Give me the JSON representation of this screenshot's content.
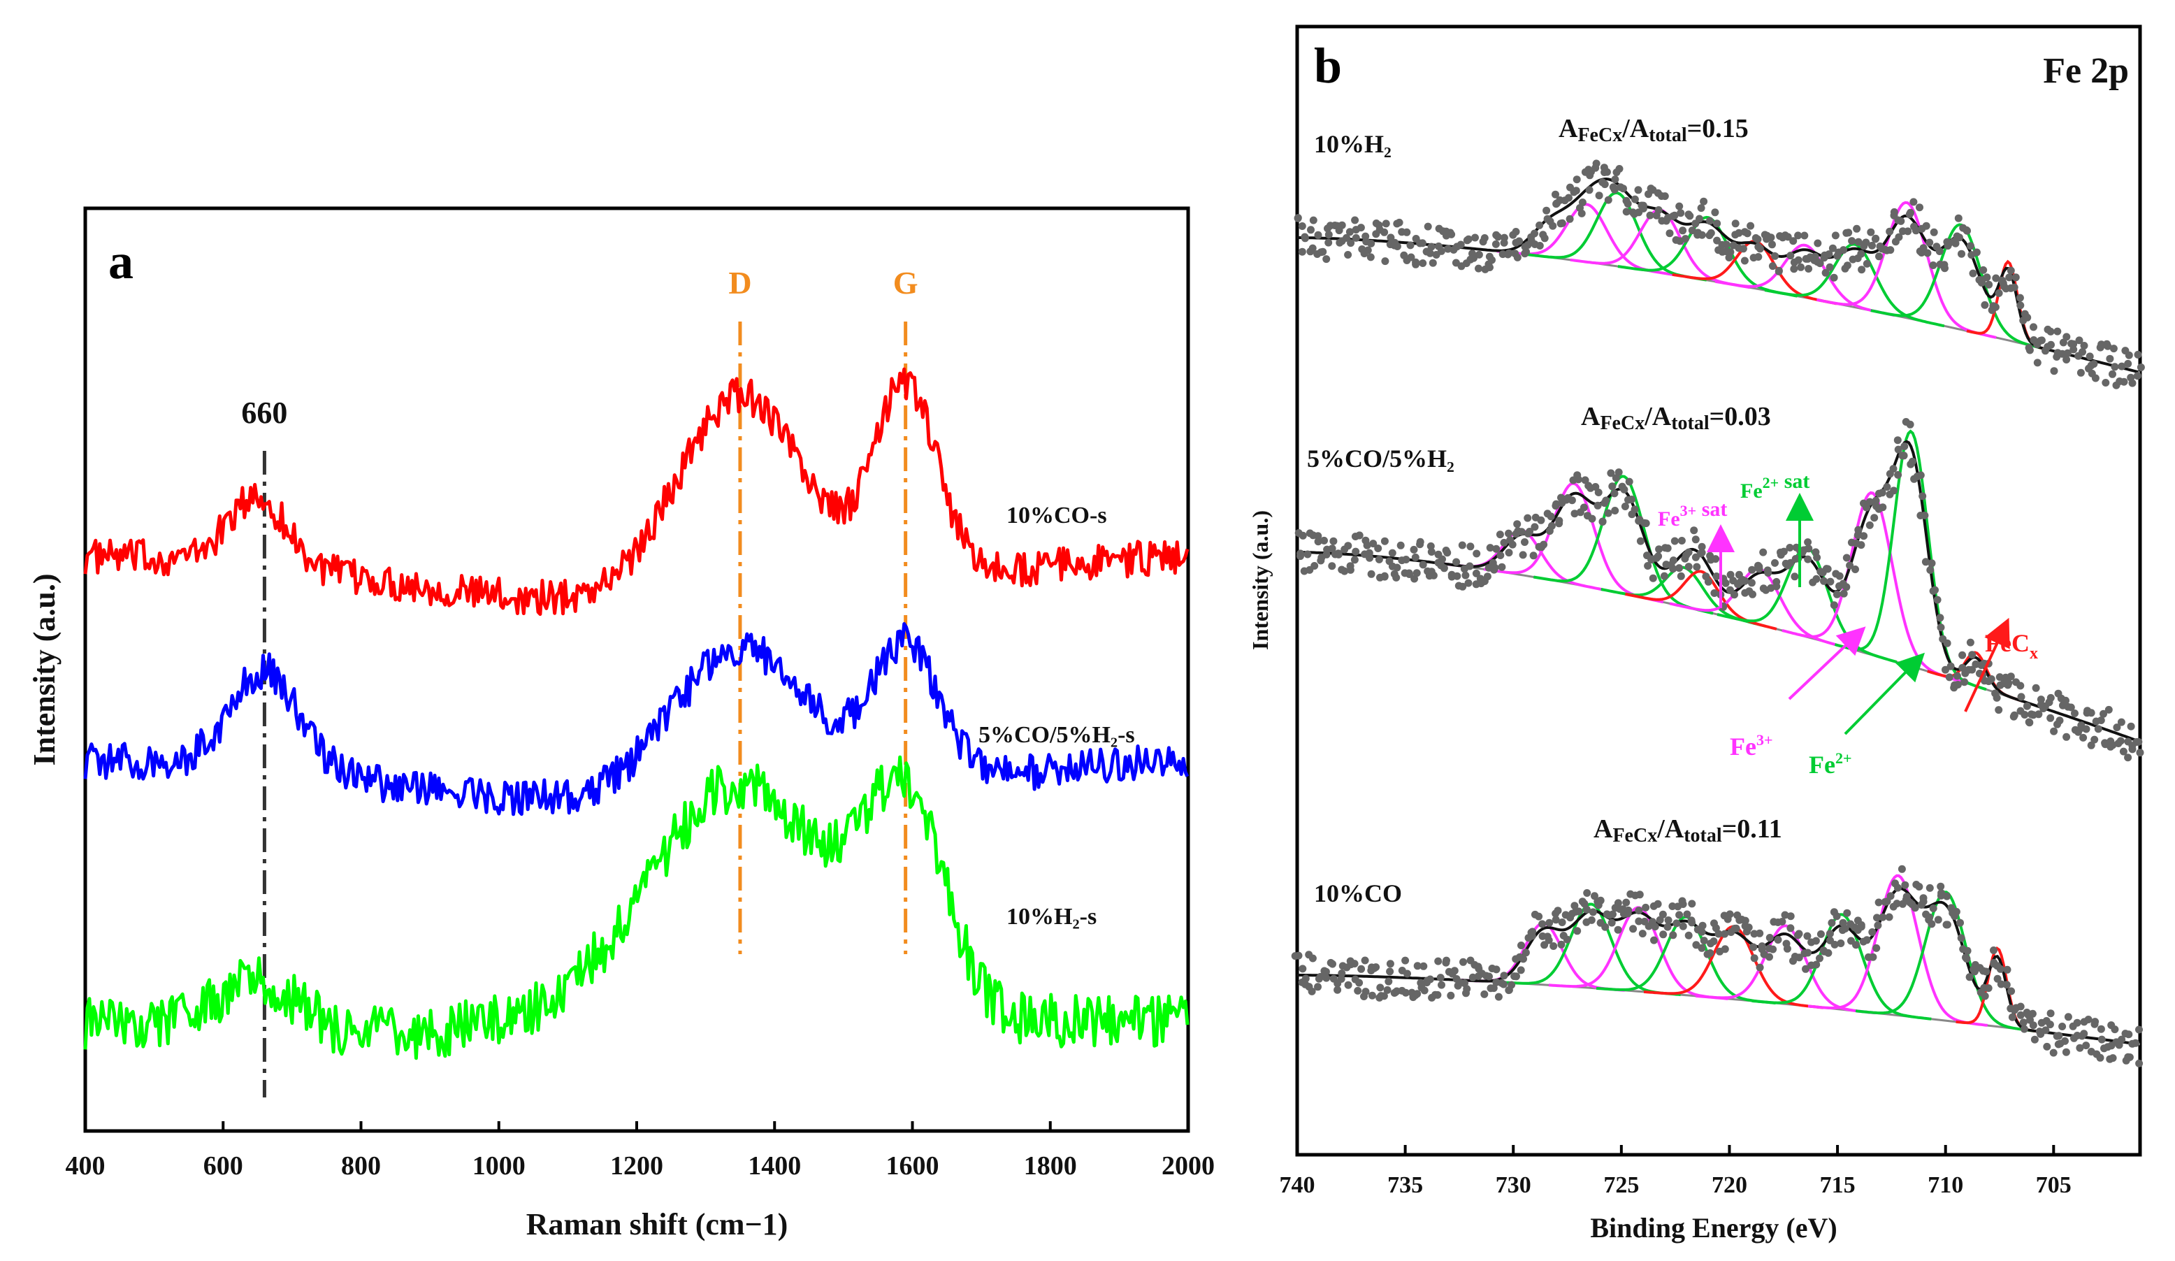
{
  "chart_data": [
    {
      "panel": "a",
      "type": "line",
      "xlabel": "Raman shift (cm−1)",
      "ylabel": "Intensity (a.u.)",
      "xlim": [
        400,
        2000
      ],
      "xticks": [
        "400",
        "600",
        "800",
        "1000",
        "1200",
        "1400",
        "1600",
        "1800",
        "2000"
      ],
      "series": [
        {
          "name": "10%CO-s",
          "color": "#ff0000",
          "peaks": [
            {
              "x": 650,
              "h": 0.35,
              "w": 60
            },
            {
              "x": 1350,
              "h": 1.05,
              "w": 130
            },
            {
              "x": 1590,
              "h": 1.0,
              "w": 65
            }
          ],
          "baseline": 0.0,
          "noise": 0.09
        },
        {
          "name": "5%CO/5%H₂-s",
          "color": "#0000ff",
          "peaks": [
            {
              "x": 660,
              "h": 0.55,
              "w": 70
            },
            {
              "x": 1350,
              "h": 0.85,
              "w": 140
            },
            {
              "x": 1590,
              "h": 0.75,
              "w": 70
            }
          ],
          "baseline": 0.0,
          "noise": 0.1
        },
        {
          "name": "10%H₂-s",
          "color": "#00ff00",
          "peaks": [
            {
              "x": 650,
              "h": 0.25,
              "w": 80
            },
            {
              "x": 1350,
              "h": 1.15,
              "w": 180
            },
            {
              "x": 1590,
              "h": 1.05,
              "w": 80
            }
          ],
          "baseline": 0.0,
          "noise": 0.14
        }
      ],
      "reference_lines": [
        {
          "label": "660",
          "x": 660,
          "color": "#333333"
        },
        {
          "label": "D",
          "x": 1350,
          "color": "#f28c1e"
        },
        {
          "label": "G",
          "x": 1590,
          "color": "#f28c1e"
        }
      ]
    },
    {
      "panel": "b",
      "type": "line",
      "title": "Fe 2p",
      "xlabel": "Binding Energy (eV)",
      "ylabel": "Intensity (a.u.)",
      "xlim": [
        740,
        701
      ],
      "xticks": [
        "740",
        "735",
        "730",
        "725",
        "720",
        "715",
        "710",
        "705"
      ],
      "series": [
        {
          "name": "10%H₂",
          "ratio_prefix": "A",
          "ratio_sub1": "FeCx",
          "ratio_mid": "/A",
          "ratio_sub2": "total",
          "ratio_value": "=0.15"
        },
        {
          "name": "5%CO/5%H₂",
          "ratio_prefix": "A",
          "ratio_sub1": "FeCx",
          "ratio_mid": "/A",
          "ratio_sub2": "total",
          "ratio_value": "=0.03"
        },
        {
          "name": "10%CO",
          "ratio_prefix": "A",
          "ratio_sub1": "FeCx",
          "ratio_mid": "/A",
          "ratio_sub2": "total",
          "ratio_value": "=0.11"
        }
      ],
      "component_colors": {
        "fe2": "#00cc33",
        "fe3": "#ff33ff",
        "fecx": "#ff1a1a",
        "envelope": "#111111",
        "baseline": "#888888",
        "points": "#666666"
      },
      "annotations": [
        {
          "text": "Fe",
          "sup": "3+",
          "extra": " sat",
          "color": "#ff33ff"
        },
        {
          "text": "Fe",
          "sup": "2+",
          "extra": " sat",
          "color": "#00cc33"
        },
        {
          "text": "FeC",
          "sub": "x",
          "extra": "",
          "color": "#ff1a1a"
        },
        {
          "text": "Fe",
          "sup": "3+",
          "extra": "",
          "color": "#ff33ff"
        },
        {
          "text": "Fe",
          "sup": "2+",
          "extra": "",
          "color": "#00cc33"
        }
      ]
    }
  ]
}
